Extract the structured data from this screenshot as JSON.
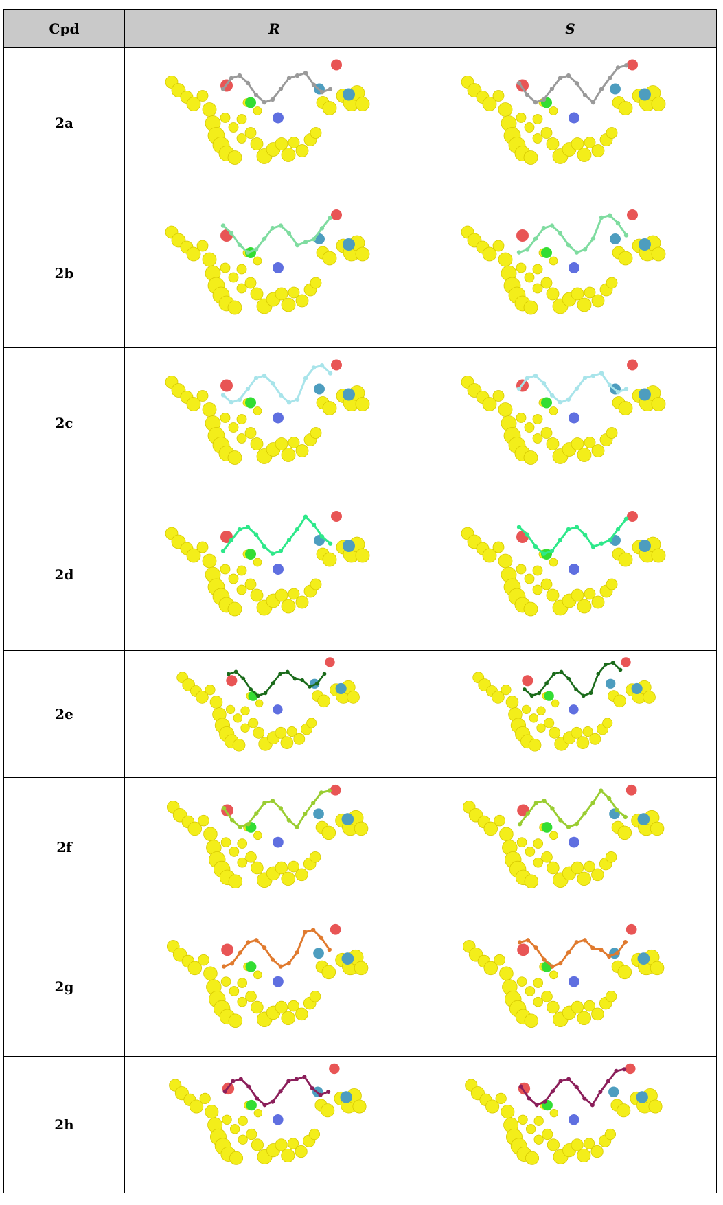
{
  "table": {
    "header": [
      "Cpd",
      "R",
      "S"
    ],
    "rows": [
      [
        "2a"
      ],
      [
        "2b"
      ],
      [
        "2c"
      ],
      [
        "2d"
      ],
      [
        "2e"
      ],
      [
        "2f"
      ],
      [
        "2g"
      ],
      [
        "2h"
      ]
    ]
  }
}
